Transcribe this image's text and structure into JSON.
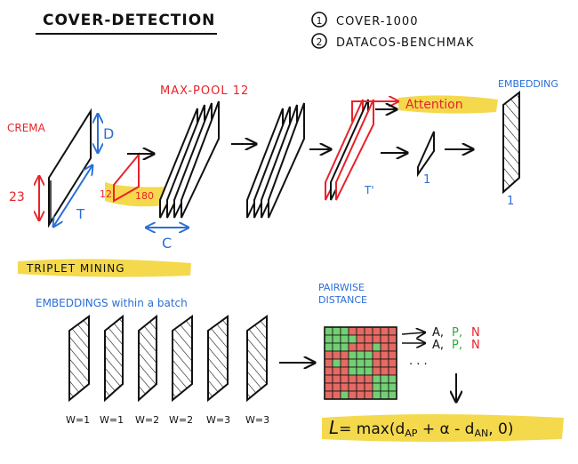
{
  "title": "COVER-DETECTION",
  "datasets": [
    {
      "num": "1",
      "label": "COVER-1000"
    },
    {
      "num": "2",
      "label": "DATACOS-BENCHMAK"
    }
  ],
  "top": {
    "crema": "CREMA",
    "dim_23": "23",
    "dim_T": "T",
    "dim_D": "D",
    "kernel_h": "12",
    "kernel_w": "180",
    "maxpool": "MAX-POOL 12",
    "dim_C": "C",
    "attention": "Attention",
    "dim_T_prime": "T'",
    "one_a": "1",
    "embedding": "EMBEDDING",
    "one_b": "1"
  },
  "bottom": {
    "triplet": "TRIPLET MINING",
    "batch": "EMBEDDINGS within a batch",
    "w_labels": [
      "W=1",
      "W=1",
      "W=2",
      "W=2",
      "W=3",
      "W=3"
    ],
    "pairwise": [
      "PAIRWISE",
      "DISTANCE"
    ],
    "triplet_rows": [
      {
        "a": "A,",
        "p": "P,",
        "n": "N"
      },
      {
        "a": "A,",
        "p": "P,",
        "n": "N"
      }
    ],
    "dots": ". . .",
    "loss": {
      "L": "L",
      "eq": "= max(",
      "dap": "d",
      "dap_sub": "AP",
      "plus": " + α - ",
      "dan": "d",
      "dan_sub": "AN",
      "end": ", 0)"
    }
  },
  "colors": {
    "ink": "#111111",
    "red": "#e8232a",
    "blue": "#2a6fd6",
    "green": "#2fa83b",
    "highlight": "#f2d22e",
    "grid_red": "#e46a63",
    "grid_green": "#74cf74"
  }
}
